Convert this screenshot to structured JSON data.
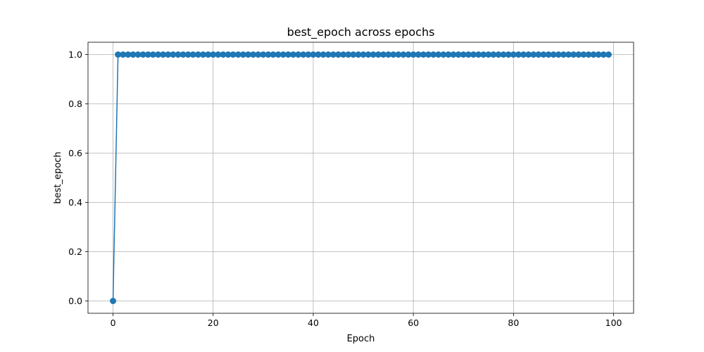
{
  "chart_data": {
    "type": "line",
    "title": "best_epoch across epochs",
    "xlabel": "Epoch",
    "ylabel": "best_epoch",
    "xlim": [
      -5,
      104
    ],
    "ylim": [
      -0.05,
      1.05
    ],
    "xticks": [
      0,
      20,
      40,
      60,
      80,
      100
    ],
    "yticks": [
      0.0,
      0.2,
      0.4,
      0.6,
      0.8,
      1.0
    ],
    "xtick_labels": [
      "0",
      "20",
      "40",
      "60",
      "80",
      "100"
    ],
    "ytick_labels": [
      "0.0",
      "0.2",
      "0.4",
      "0.6",
      "0.8",
      "1.0"
    ],
    "grid": true,
    "legend": false,
    "series": [
      {
        "color": "#1f77b4",
        "marker": "circle",
        "x_start": 0,
        "x_end": 99,
        "values": [
          0,
          1,
          1,
          1,
          1,
          1,
          1,
          1,
          1,
          1,
          1,
          1,
          1,
          1,
          1,
          1,
          1,
          1,
          1,
          1,
          1,
          1,
          1,
          1,
          1,
          1,
          1,
          1,
          1,
          1,
          1,
          1,
          1,
          1,
          1,
          1,
          1,
          1,
          1,
          1,
          1,
          1,
          1,
          1,
          1,
          1,
          1,
          1,
          1,
          1,
          1,
          1,
          1,
          1,
          1,
          1,
          1,
          1,
          1,
          1,
          1,
          1,
          1,
          1,
          1,
          1,
          1,
          1,
          1,
          1,
          1,
          1,
          1,
          1,
          1,
          1,
          1,
          1,
          1,
          1,
          1,
          1,
          1,
          1,
          1,
          1,
          1,
          1,
          1,
          1,
          1,
          1,
          1,
          1,
          1,
          1,
          1,
          1,
          1,
          1
        ]
      }
    ]
  }
}
